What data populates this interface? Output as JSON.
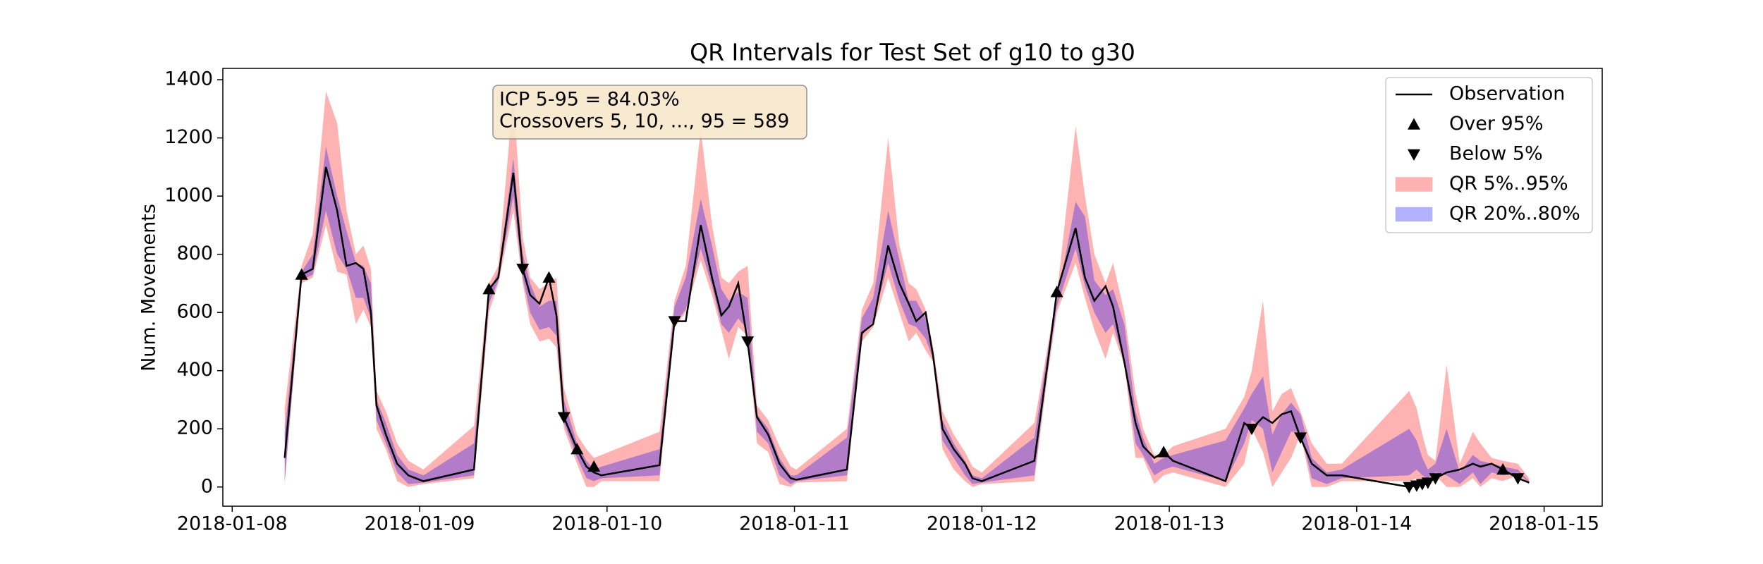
{
  "chart_data": {
    "type": "line",
    "title": "QR Intervals for Test Set of g10 to g30",
    "ylabel": "Num. Movements",
    "annotation": [
      "ICP 5-95 = 84.03%",
      "Crossovers 5, 10, ..., 95 = 589"
    ],
    "legend": "upper right",
    "grid": false,
    "xlim": [
      -0.05,
      7.31
    ],
    "xticks": [
      {
        "value": 0,
        "label": "2018-01-08"
      },
      {
        "value": 1,
        "label": "2018-01-09"
      },
      {
        "value": 2,
        "label": "2018-01-10"
      },
      {
        "value": 3,
        "label": "2018-01-11"
      },
      {
        "value": 4,
        "label": "2018-01-12"
      },
      {
        "value": 5,
        "label": "2018-01-13"
      },
      {
        "value": 6,
        "label": "2018-01-14"
      },
      {
        "value": 7,
        "label": "2018-01-15"
      }
    ],
    "ylim": [
      -66,
      1439
    ],
    "yticks": [
      0,
      200,
      400,
      600,
      800,
      1000,
      1200,
      1400
    ],
    "x": [
      0.28,
      0.37,
      0.43,
      0.5,
      0.56,
      0.61,
      0.66,
      0.7,
      0.74,
      0.77,
      0.82,
      0.88,
      0.94,
      1.02,
      1.29,
      1.37,
      1.42,
      1.5,
      1.55,
      1.59,
      1.64,
      1.69,
      1.73,
      1.77,
      1.84,
      1.89,
      1.93,
      1.97,
      2.28,
      2.36,
      2.42,
      2.5,
      2.56,
      2.61,
      2.65,
      2.7,
      2.75,
      2.8,
      2.86,
      2.92,
      2.98,
      3.01,
      3.28,
      3.36,
      3.42,
      3.5,
      3.56,
      3.61,
      3.65,
      3.7,
      3.74,
      3.79,
      3.85,
      3.91,
      3.95,
      4.0,
      4.28,
      4.35,
      4.4,
      4.5,
      4.55,
      4.6,
      4.66,
      4.7,
      4.76,
      4.82,
      4.86,
      4.92,
      4.97,
      5.02,
      5.3,
      5.4,
      5.44,
      5.5,
      5.55,
      5.6,
      5.65,
      5.7,
      5.76,
      5.84,
      5.92,
      6.28,
      6.32,
      6.35,
      6.38,
      6.42,
      6.48,
      6.55,
      6.62,
      6.66,
      6.72,
      6.78,
      6.86,
      6.92
    ],
    "bands": [
      {
        "name": "QR 5%..95%",
        "color": "#ff0000",
        "lower": [
          10,
          700,
          720,
          900,
          740,
          730,
          560,
          610,
          550,
          200,
          130,
          20,
          0,
          10,
          30,
          600,
          700,
          950,
          700,
          560,
          500,
          510,
          480,
          200,
          80,
          0,
          0,
          20,
          20,
          550,
          600,
          780,
          660,
          540,
          440,
          550,
          520,
          150,
          120,
          10,
          0,
          15,
          20,
          500,
          550,
          720,
          600,
          500,
          530,
          470,
          430,
          130,
          60,
          20,
          0,
          10,
          20,
          380,
          600,
          770,
          650,
          540,
          440,
          530,
          420,
          100,
          100,
          10,
          40,
          50,
          0,
          80,
          200,
          120,
          0,
          50,
          100,
          180,
          0,
          0,
          20,
          20,
          30,
          20,
          20,
          40,
          0,
          0,
          30,
          0,
          30,
          20,
          40,
          10
        ],
        "upper": [
          270,
          760,
          870,
          1360,
          1250,
          950,
          800,
          830,
          750,
          330,
          260,
          150,
          90,
          60,
          210,
          700,
          760,
          1350,
          860,
          720,
          680,
          700,
          720,
          340,
          180,
          130,
          100,
          110,
          190,
          640,
          760,
          1230,
          900,
          720,
          700,
          740,
          760,
          280,
          230,
          140,
          70,
          60,
          200,
          610,
          700,
          1200,
          830,
          700,
          680,
          610,
          480,
          260,
          180,
          120,
          70,
          50,
          220,
          480,
          660,
          1240,
          1000,
          800,
          700,
          770,
          600,
          320,
          200,
          110,
          110,
          140,
          200,
          310,
          400,
          640,
          260,
          320,
          340,
          260,
          150,
          80,
          80,
          330,
          270,
          180,
          110,
          90,
          420,
          80,
          190,
          150,
          100,
          90,
          80,
          30
        ]
      },
      {
        "name": "QR 20%..80%",
        "color": "#0000ff",
        "lower": [
          20,
          710,
          730,
          950,
          800,
          750,
          650,
          650,
          580,
          230,
          150,
          50,
          10,
          15,
          40,
          630,
          710,
          1000,
          720,
          600,
          540,
          550,
          520,
          220,
          100,
          30,
          20,
          30,
          40,
          560,
          610,
          820,
          690,
          560,
          530,
          580,
          540,
          190,
          150,
          40,
          10,
          20,
          40,
          520,
          570,
          770,
          640,
          560,
          550,
          510,
          440,
          160,
          100,
          40,
          10,
          15,
          40,
          400,
          620,
          820,
          690,
          600,
          530,
          560,
          430,
          150,
          110,
          40,
          60,
          70,
          20,
          150,
          230,
          200,
          50,
          120,
          190,
          190,
          30,
          10,
          30,
          40,
          60,
          40,
          30,
          50,
          40,
          10,
          50,
          10,
          50,
          40,
          50,
          15
        ],
        "upper": [
          190,
          740,
          800,
          1170,
          1000,
          880,
          770,
          760,
          700,
          300,
          220,
          110,
          60,
          40,
          150,
          670,
          740,
          1130,
          800,
          700,
          620,
          640,
          640,
          300,
          150,
          90,
          60,
          70,
          130,
          620,
          720,
          990,
          830,
          680,
          640,
          670,
          650,
          250,
          200,
          100,
          40,
          40,
          170,
          580,
          650,
          950,
          780,
          640,
          640,
          580,
          470,
          230,
          150,
          90,
          40,
          30,
          170,
          460,
          640,
          980,
          930,
          710,
          660,
          680,
          560,
          260,
          170,
          80,
          100,
          110,
          160,
          270,
          320,
          380,
          180,
          250,
          290,
          250,
          100,
          50,
          60,
          200,
          160,
          100,
          60,
          80,
          200,
          50,
          110,
          90,
          80,
          70,
          60,
          20
        ]
      }
    ],
    "series": [
      {
        "name": "Observation",
        "color": "#000000",
        "values": [
          100,
          730,
          750,
          1100,
          950,
          760,
          770,
          750,
          600,
          280,
          180,
          80,
          40,
          20,
          60,
          680,
          720,
          1080,
          750,
          660,
          630,
          720,
          590,
          240,
          130,
          70,
          50,
          40,
          75,
          570,
          570,
          900,
          720,
          590,
          620,
          700,
          500,
          240,
          180,
          80,
          30,
          25,
          60,
          530,
          560,
          830,
          700,
          630,
          570,
          600,
          450,
          200,
          130,
          80,
          30,
          20,
          90,
          420,
          670,
          890,
          720,
          640,
          690,
          620,
          430,
          220,
          140,
          100,
          120,
          90,
          20,
          220,
          200,
          240,
          220,
          250,
          260,
          170,
          80,
          40,
          40,
          0,
          5,
          10,
          15,
          30,
          50,
          60,
          80,
          70,
          80,
          60,
          30,
          15
        ]
      }
    ],
    "markers": [
      {
        "name": "Over 95%",
        "color": "#000000",
        "shape": "triangle-up",
        "x": [
          0.37,
          1.37,
          1.69,
          1.84,
          1.93,
          4.4,
          4.97,
          6.78
        ],
        "values": [
          730,
          680,
          720,
          130,
          70,
          670,
          120,
          60
        ]
      },
      {
        "name": "Below 5%",
        "color": "#000000",
        "shape": "triangle-down",
        "x": [
          1.55,
          1.77,
          2.36,
          2.75,
          5.44,
          5.7,
          6.28,
          6.32,
          6.35,
          6.38,
          6.42,
          6.86
        ],
        "values": [
          750,
          240,
          570,
          500,
          200,
          170,
          0,
          5,
          10,
          15,
          30,
          30
        ]
      }
    ]
  }
}
